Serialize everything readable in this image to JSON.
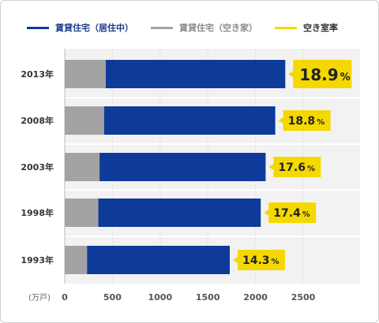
{
  "legend": {
    "occupied": "賃貸住宅（居住中）",
    "vacant": "賃貸住宅（空き家）",
    "rate": "空き室率"
  },
  "colors": {
    "occupied": "#0e3a99",
    "vacant": "#a3a3a3",
    "rate": "#f5d800",
    "rate_label_bg": "#f5d800",
    "grid": "#d8d8d8",
    "plot_bg": "#f2f2f2"
  },
  "chart_data": {
    "type": "bar",
    "orientation": "horizontal",
    "stacked": true,
    "unit_label": "(万戸)",
    "categories": [
      "2013年",
      "2008年",
      "2003年",
      "1998年",
      "1993年"
    ],
    "series": [
      {
        "name": "賃貸住宅（空き家）",
        "values": [
          430,
          413,
          365,
          352,
          234
        ]
      },
      {
        "name": "賃貸住宅（居住中）",
        "values": [
          1882,
          1794,
          1741,
          1703,
          1496
        ]
      }
    ],
    "vacancy_rate": {
      "name": "空き室率",
      "values": [
        18.9,
        18.8,
        17.6,
        17.4,
        14.3
      ],
      "labels": [
        "18.9",
        "18.8",
        "17.6",
        "17.4",
        "14.3"
      ],
      "suffix": "%"
    },
    "xlim": [
      0,
      3000
    ],
    "xticks": [
      0,
      500,
      1000,
      1500,
      2000,
      2500
    ],
    "grid": true
  }
}
